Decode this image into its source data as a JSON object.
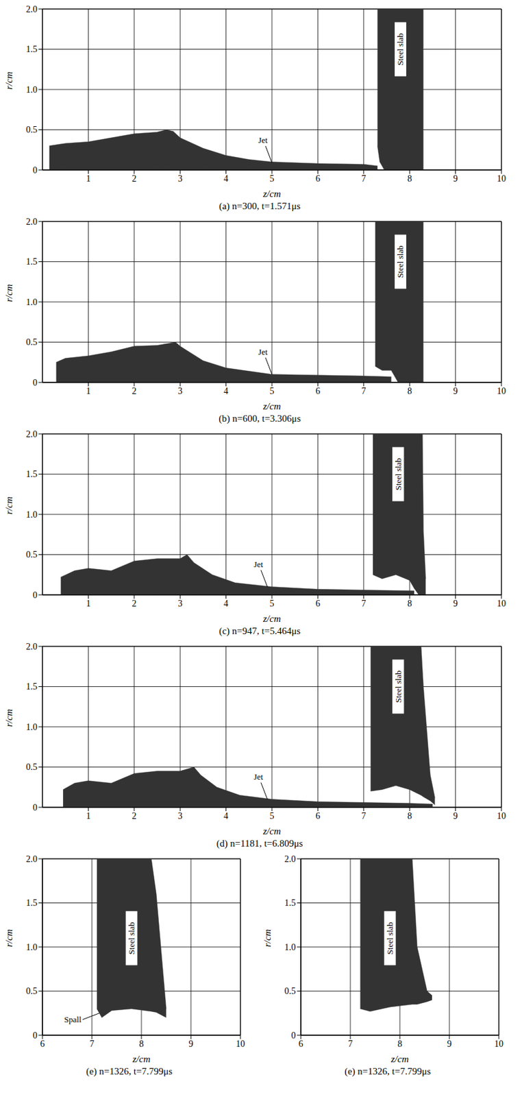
{
  "chart_data": [
    {
      "type": "area",
      "title": "(a) n=300, t=1.571μs",
      "x_label": "z/cm",
      "y_label": "r/cm",
      "xlim": [
        0,
        10
      ],
      "ylim": [
        0,
        2
      ],
      "xticks": [
        1,
        2,
        3,
        4,
        5,
        6,
        7,
        8,
        9,
        10
      ],
      "yticks": [
        0,
        0.5,
        {
          "value": 1,
          "label": "1.0"
        },
        1.5,
        {
          "value": 2,
          "label": "2.0"
        }
      ],
      "grid": true,
      "color": "#333333",
      "annotations": [
        {
          "text": "Jet",
          "x": 5.0,
          "y": 0.09,
          "kind": "leader_above"
        },
        {
          "text": "Steel slab",
          "x": 7.8,
          "y": 1.5,
          "kind": "inline"
        }
      ],
      "shapes": [
        {
          "z": [
            0.15,
            0.5,
            1.0,
            1.5,
            2.0,
            2.5,
            2.7,
            2.85,
            3.0,
            3.5,
            4.0,
            4.5,
            5.0,
            6.0,
            7.0,
            7.3
          ],
          "lower": [
            0,
            0,
            0,
            0,
            0,
            0,
            0,
            0,
            0,
            0,
            0,
            0,
            0,
            0,
            0,
            0
          ],
          "upper": [
            0.3,
            0.33,
            0.35,
            0.4,
            0.45,
            0.47,
            0.5,
            0.48,
            0.4,
            0.27,
            0.18,
            0.13,
            0.1,
            0.08,
            0.07,
            0.05
          ]
        },
        {
          "z": [
            7.3,
            7.35,
            7.45,
            8.3
          ],
          "lower": [
            0.3,
            0.1,
            0,
            0
          ],
          "upper": [
            2,
            2,
            2,
            2
          ]
        }
      ]
    },
    {
      "type": "area",
      "title": "(b) n=600, t=3.306μs",
      "x_label": "z/cm",
      "y_label": "r/cm",
      "xlim": [
        0,
        10
      ],
      "ylim": [
        0,
        2
      ],
      "xticks": [
        1,
        2,
        3,
        4,
        5,
        6,
        7,
        8,
        9,
        10
      ],
      "yticks": [
        0,
        0.5,
        {
          "value": 1,
          "label": "1.0"
        },
        1.5,
        {
          "value": 2,
          "label": "2.0"
        }
      ],
      "grid": true,
      "color": "#333333",
      "annotations": [
        {
          "text": "Jet",
          "x": 5.0,
          "y": 0.1,
          "kind": "leader_above"
        },
        {
          "text": "Steel slab",
          "x": 7.8,
          "y": 1.5,
          "kind": "inline"
        }
      ],
      "shapes": [
        {
          "z": [
            0.3,
            0.5,
            1.0,
            1.5,
            2.0,
            2.5,
            2.9,
            3.0,
            3.5,
            4.0,
            5.0,
            6.0,
            7.0,
            7.6
          ],
          "lower": [
            0,
            0,
            0,
            0,
            0,
            0,
            0,
            0,
            0,
            0,
            0,
            0,
            0,
            0
          ],
          "upper": [
            0.25,
            0.3,
            0.33,
            0.38,
            0.45,
            0.46,
            0.5,
            0.45,
            0.27,
            0.18,
            0.1,
            0.09,
            0.08,
            0.07
          ]
        },
        {
          "z": [
            7.25,
            7.4,
            7.6,
            7.7,
            7.75,
            8.3
          ],
          "lower": [
            0.2,
            0.15,
            0.15,
            0.05,
            0,
            0
          ],
          "upper": [
            2,
            2,
            2,
            2,
            2,
            2
          ]
        }
      ]
    },
    {
      "type": "area",
      "title": "(c) n=947, t=5.464μs",
      "x_label": "z/cm",
      "y_label": "r/cm",
      "xlim": [
        0,
        10
      ],
      "ylim": [
        0,
        2
      ],
      "xticks": [
        1,
        2,
        3,
        4,
        5,
        6,
        7,
        8,
        9,
        10
      ],
      "yticks": [
        0,
        0.5,
        {
          "value": 1,
          "label": "1.0"
        },
        1.5,
        {
          "value": 2,
          "label": "2.0"
        }
      ],
      "grid": true,
      "color": "#333333",
      "annotations": [
        {
          "text": "Jet",
          "x": 4.9,
          "y": 0.1,
          "kind": "leader_above"
        },
        {
          "text": "Steel slab",
          "x": 7.75,
          "y": 1.5,
          "kind": "inline"
        }
      ],
      "shapes": [
        {
          "z": [
            0.4,
            0.7,
            1.0,
            1.5,
            2.0,
            2.5,
            3.0,
            3.15,
            3.3,
            3.7,
            4.2,
            5.0,
            6.0,
            7.0,
            8.1
          ],
          "lower": [
            0,
            0,
            0,
            0,
            0,
            0,
            0,
            0,
            0,
            0,
            0,
            0,
            0,
            0,
            0
          ],
          "upper": [
            0.22,
            0.3,
            0.33,
            0.3,
            0.42,
            0.45,
            0.45,
            0.5,
            0.4,
            0.25,
            0.15,
            0.1,
            0.07,
            0.06,
            0.05
          ]
        },
        {
          "z": [
            7.2,
            7.4,
            7.7,
            8.0,
            8.1,
            8.2,
            8.28,
            8.3,
            8.35
          ],
          "lower": [
            0.25,
            0.2,
            0.25,
            0.18,
            0.08,
            0,
            0,
            0,
            0
          ],
          "upper": [
            2,
            2,
            2,
            2,
            2,
            2,
            2,
            0.8,
            0.2
          ]
        }
      ]
    },
    {
      "type": "area",
      "title": "(d) n=1181, t=6.809μs",
      "x_label": "z/cm",
      "y_label": "r/cm",
      "xlim": [
        0,
        10
      ],
      "ylim": [
        0,
        2
      ],
      "xticks": [
        1,
        2,
        3,
        4,
        5,
        6,
        7,
        8,
        9,
        10
      ],
      "yticks": [
        0,
        0.5,
        {
          "value": 1,
          "label": "1.0"
        },
        1.5,
        {
          "value": 2,
          "label": "2.0"
        }
      ],
      "grid": true,
      "color": "#333333",
      "annotations": [
        {
          "text": "Jet",
          "x": 4.9,
          "y": 0.1,
          "kind": "leader_above"
        },
        {
          "text": "Steel slab",
          "x": 7.75,
          "y": 1.5,
          "kind": "inline"
        }
      ],
      "shapes": [
        {
          "z": [
            0.45,
            0.7,
            1.0,
            1.5,
            2.0,
            2.5,
            3.0,
            3.3,
            3.45,
            3.8,
            4.3,
            5.0,
            6.0,
            7.0,
            8.0,
            8.5
          ],
          "lower": [
            0,
            0,
            0,
            0,
            0,
            0,
            0,
            0,
            0,
            0,
            0,
            0,
            0,
            0,
            0,
            0
          ],
          "upper": [
            0.22,
            0.3,
            0.33,
            0.3,
            0.42,
            0.45,
            0.45,
            0.5,
            0.4,
            0.25,
            0.15,
            0.1,
            0.07,
            0.06,
            0.05,
            0.04
          ]
        },
        {
          "z": [
            7.15,
            7.4,
            7.7,
            8.0,
            8.25,
            8.3,
            8.45,
            8.55
          ],
          "lower": [
            0.2,
            0.22,
            0.27,
            0.22,
            0.15,
            0.13,
            0.08,
            0.03
          ],
          "upper": [
            2,
            2,
            2,
            2,
            2,
            1.5,
            0.4,
            0.12
          ]
        }
      ]
    },
    {
      "type": "area",
      "title": "(e) n=1326, t=7.799μs",
      "x_label": "z/cm",
      "y_label": "r/cm",
      "xlim": [
        6,
        10
      ],
      "ylim": [
        0,
        2
      ],
      "xticks": [
        6,
        7,
        8,
        9,
        10
      ],
      "yticks": [
        0,
        0.5,
        {
          "value": 1,
          "label": "1.0"
        },
        1.5,
        {
          "value": 2,
          "label": "2.0"
        }
      ],
      "grid": true,
      "color": "#333333",
      "annotations": [
        {
          "text": "Spall",
          "x": 7.15,
          "y": 0.25,
          "kind": "leader_left"
        },
        {
          "text": "Steel slab",
          "x": 7.8,
          "y": 1.1,
          "kind": "inline"
        }
      ],
      "shapes": [
        {
          "z": [
            7.1,
            7.2,
            7.4,
            7.8,
            8.2,
            8.3,
            8.5
          ],
          "lower": [
            0.3,
            0.2,
            0.28,
            0.3,
            0.27,
            0.26,
            0.2
          ],
          "upper": [
            2,
            2,
            2,
            2,
            2,
            1.6,
            0.3
          ]
        }
      ]
    },
    {
      "type": "area",
      "title": "(e) n=1326, t=7.799μs",
      "x_label": "z/cm",
      "y_label": "r/cm",
      "xlim": [
        6,
        10
      ],
      "ylim": [
        0,
        2
      ],
      "xticks": [
        6,
        7,
        8,
        9,
        10
      ],
      "yticks": [
        0,
        0.5,
        {
          "value": 1,
          "label": "1.0"
        },
        1.5,
        {
          "value": 2,
          "label": "2.0"
        }
      ],
      "grid": true,
      "color": "#333333",
      "annotations": [
        {
          "text": "Steel slab",
          "x": 7.8,
          "y": 1.1,
          "kind": "inline"
        }
      ],
      "shapes": [
        {
          "z": [
            7.2,
            7.4,
            7.8,
            8.25,
            8.35,
            8.55,
            8.65
          ],
          "lower": [
            0.3,
            0.27,
            0.32,
            0.35,
            0.35,
            0.38,
            0.4
          ],
          "upper": [
            2,
            2,
            2,
            2,
            1.0,
            0.5,
            0.45
          ]
        }
      ]
    }
  ]
}
